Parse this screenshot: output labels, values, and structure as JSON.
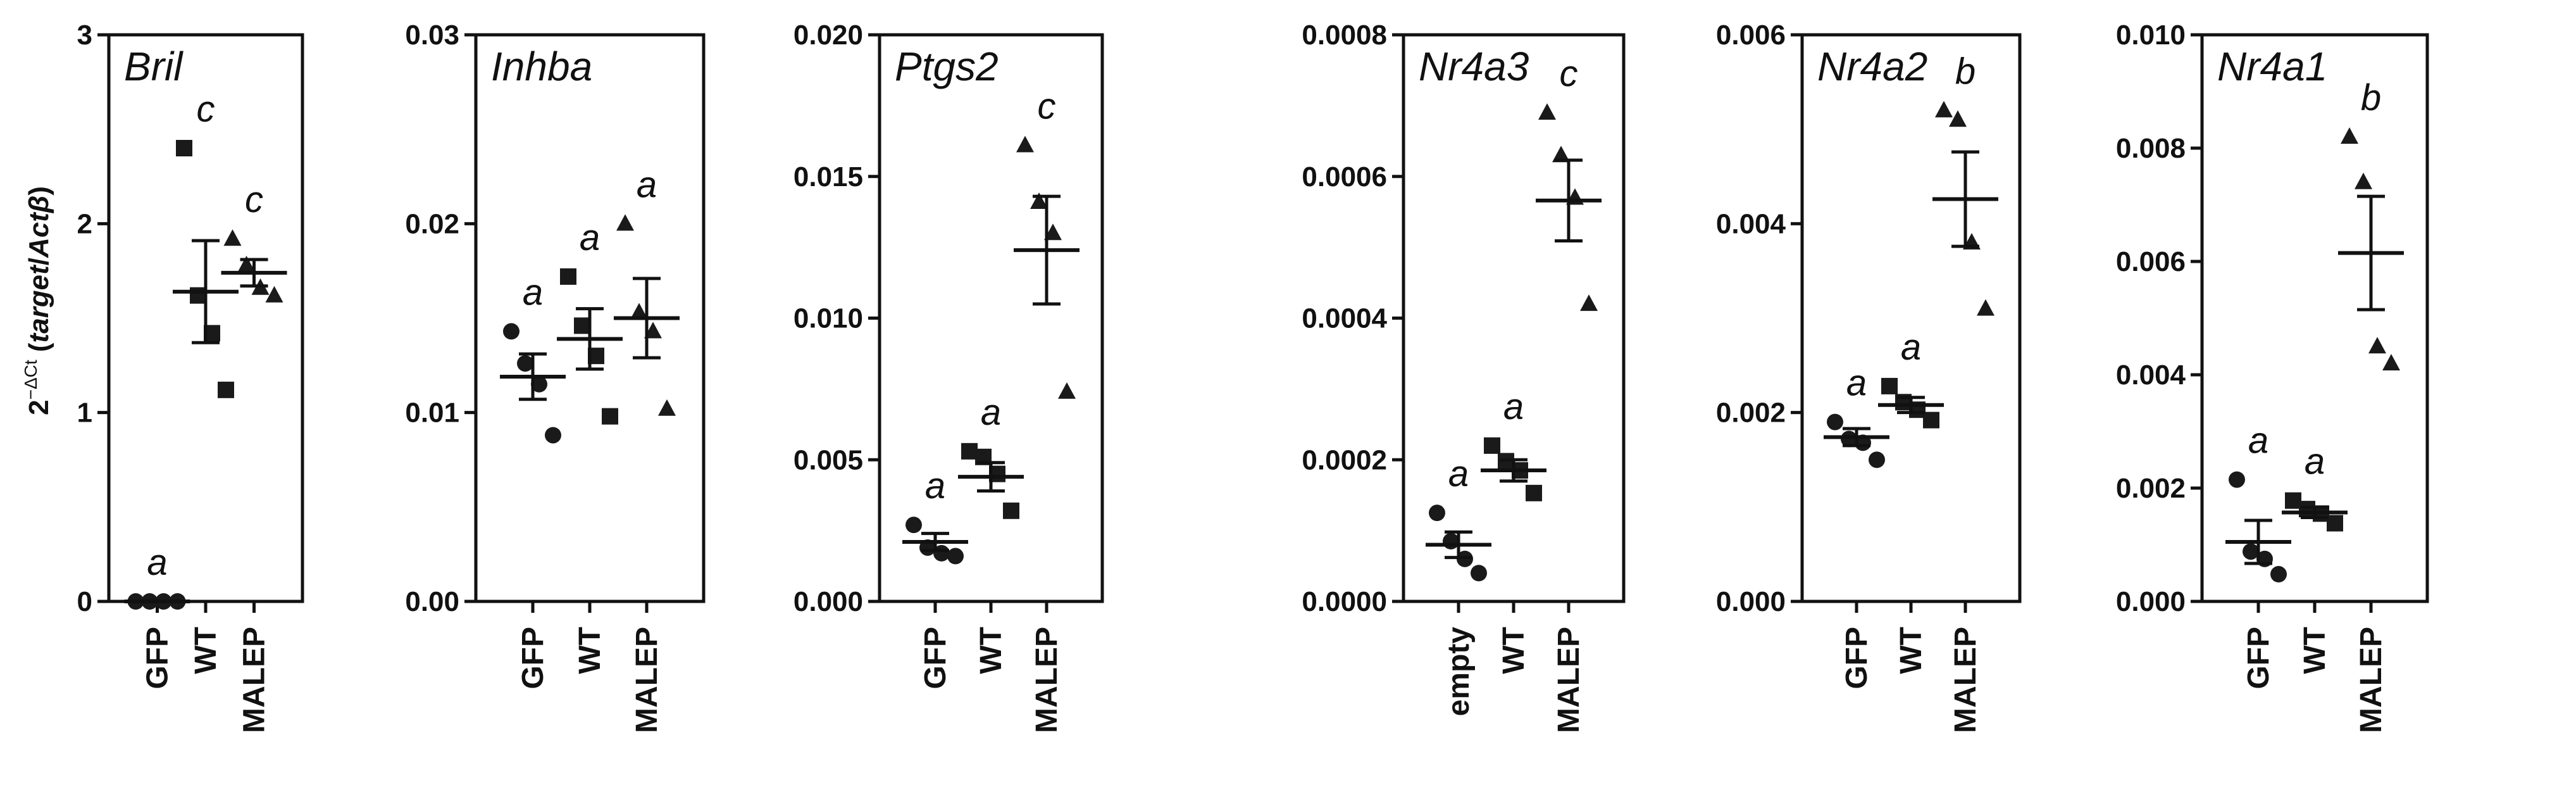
{
  "figure": {
    "ylabel_base": "2",
    "ylabel_sup": "−ΔCt",
    "ylabel_paren_open": " (",
    "ylabel_target": "target",
    "ylabel_slash": "/",
    "ylabel_act": "Act",
    "ylabel_beta": "β",
    "ylabel_paren_close": ")"
  },
  "chart_data": [
    {
      "type": "scatter",
      "title": "Bril",
      "categories": [
        "GFP",
        "WT",
        "MALEP"
      ],
      "ylim": [
        0,
        3
      ],
      "yticks": [
        "0",
        "1",
        "2",
        "3"
      ],
      "marker_shapes": [
        "circle",
        "square",
        "triangle"
      ],
      "points": [
        [
          0.0,
          0.0,
          0.0,
          0.0
        ],
        [
          2.4,
          1.62,
          1.42,
          1.12
        ],
        [
          1.92,
          1.78,
          1.66,
          1.62
        ]
      ],
      "mean": [
        0.0,
        1.64,
        1.74
      ],
      "sem": [
        0.0,
        0.27,
        0.07
      ],
      "letters": [
        "a",
        "c",
        "c"
      ]
    },
    {
      "type": "scatter",
      "title": "Inhba",
      "categories": [
        "GFP",
        "WT",
        "MALEP"
      ],
      "ylim": [
        0,
        0.03
      ],
      "yticks": [
        "0.00",
        "0.01",
        "0.02",
        "0.03"
      ],
      "marker_shapes": [
        "circle",
        "square",
        "triangle"
      ],
      "points": [
        [
          0.0143,
          0.0126,
          0.0115,
          0.0088
        ],
        [
          0.0172,
          0.0146,
          0.013,
          0.0098
        ],
        [
          0.02,
          0.0153,
          0.0143,
          0.0102
        ]
      ],
      "mean": [
        0.0119,
        0.0139,
        0.015
      ],
      "sem": [
        0.0012,
        0.0016,
        0.0021
      ],
      "letters": [
        "a",
        "a",
        "a"
      ]
    },
    {
      "type": "scatter",
      "title": "Ptgs2",
      "categories": [
        "GFP",
        "WT",
        "MALEP"
      ],
      "ylim": [
        0,
        0.02
      ],
      "yticks": [
        "0.000",
        "0.005",
        "0.010",
        "0.015",
        "0.020"
      ],
      "marker_shapes": [
        "circle",
        "square",
        "triangle"
      ],
      "points": [
        [
          0.0027,
          0.0019,
          0.0017,
          0.0016
        ],
        [
          0.0053,
          0.0051,
          0.0045,
          0.0032
        ],
        [
          0.0161,
          0.0141,
          0.013,
          0.0074
        ]
      ],
      "mean": [
        0.0021,
        0.0044,
        0.0124
      ],
      "sem": [
        0.0003,
        0.0005,
        0.0019
      ],
      "letters": [
        "a",
        "a",
        "c"
      ]
    },
    {
      "type": "scatter",
      "title": "Nr4a3",
      "categories": [
        "empty",
        "WT",
        "MALEP"
      ],
      "ylim": [
        0,
        0.0008
      ],
      "yticks": [
        "0.0000",
        "0.0002",
        "0.0004",
        "0.0006",
        "0.0008"
      ],
      "marker_shapes": [
        "circle",
        "square",
        "triangle"
      ],
      "points": [
        [
          0.000125,
          8.5e-05,
          6e-05,
          4e-05
        ],
        [
          0.00022,
          0.000198,
          0.000185,
          0.000153
        ],
        [
          0.00069,
          0.00063,
          0.00057,
          0.00042
        ]
      ],
      "mean": [
        8e-05,
        0.000185,
        0.000566
      ],
      "sem": [
        1.8e-05,
        1.5e-05,
        5.7e-05
      ],
      "letters": [
        "a",
        "a",
        "c"
      ]
    },
    {
      "type": "scatter",
      "title": "Nr4a2",
      "categories": [
        "GFP",
        "WT",
        "MALEP"
      ],
      "ylim": [
        0,
        0.006
      ],
      "yticks": [
        "0.000",
        "0.002",
        "0.004",
        "0.006"
      ],
      "marker_shapes": [
        "circle",
        "square",
        "triangle"
      ],
      "points": [
        [
          0.0019,
          0.00172,
          0.00168,
          0.0015
        ],
        [
          0.00228,
          0.00211,
          0.00203,
          0.00192
        ],
        [
          0.0052,
          0.0051,
          0.0038,
          0.0031
        ]
      ],
      "mean": [
        0.00174,
        0.00208,
        0.00426
      ],
      "sem": [
        9e-05,
        8e-05,
        0.0005
      ],
      "letters": [
        "a",
        "a",
        "b"
      ]
    },
    {
      "type": "scatter",
      "title": "Nr4a1",
      "categories": [
        "GFP",
        "WT",
        "MALEP"
      ],
      "ylim": [
        0,
        0.01
      ],
      "yticks": [
        "0.000",
        "0.002",
        "0.004",
        "0.006",
        "0.008",
        "0.010"
      ],
      "marker_shapes": [
        "circle",
        "square",
        "triangle"
      ],
      "points": [
        [
          0.00215,
          0.00088,
          0.00075,
          0.00048
        ],
        [
          0.00178,
          0.00163,
          0.00155,
          0.00138
        ],
        [
          0.0082,
          0.0074,
          0.0045,
          0.0042
        ]
      ],
      "mean": [
        0.00105,
        0.00157,
        0.00615
      ],
      "sem": [
        0.00038,
        9e-05,
        0.001
      ],
      "letters": [
        "a",
        "a",
        "b"
      ]
    }
  ]
}
